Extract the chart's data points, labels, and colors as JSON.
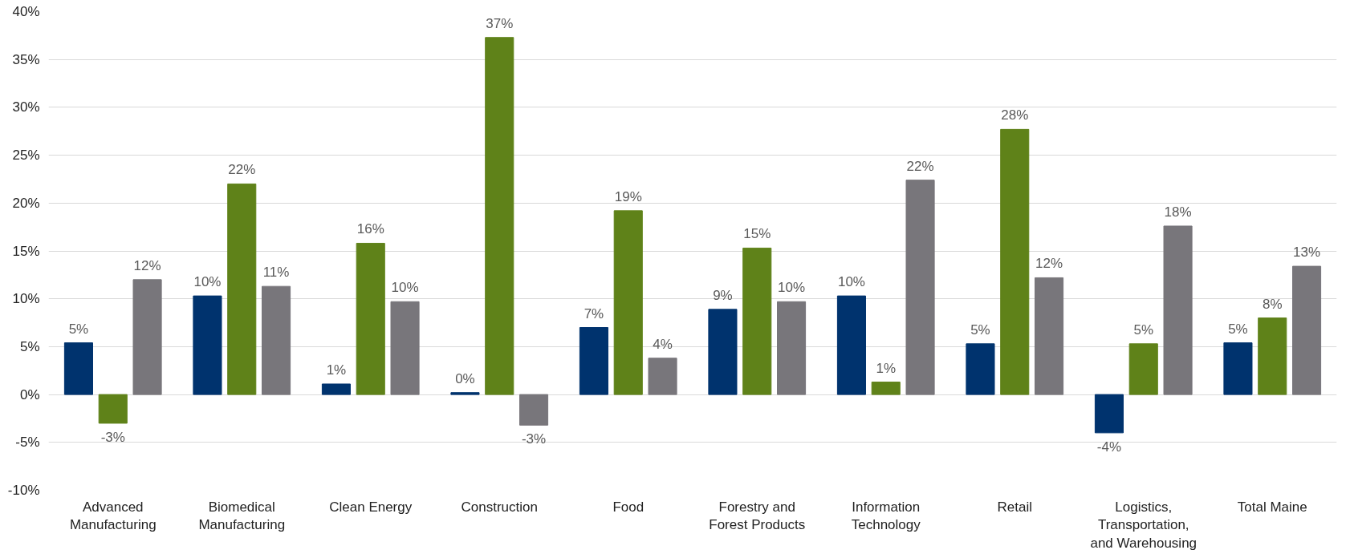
{
  "chart_data": {
    "type": "bar",
    "categories": [
      "Advanced Manufacturing",
      "Biomedical Manufacturing",
      "Clean Energy",
      "Construction",
      "Food",
      "Forestry and Forest Products",
      "Information Technology",
      "Retail",
      "Logistics, Transportation, and Warehousing",
      "Total Maine"
    ],
    "series": [
      {
        "color": "#00336e",
        "values": [
          5.4,
          10.3,
          1.1,
          0.2,
          7.0,
          8.9,
          10.3,
          5.3,
          -4.0,
          5.4
        ],
        "value_labels": [
          "5%",
          "10%",
          "1%",
          "0%",
          "7%",
          "9%",
          "10%",
          "5%",
          "-4%",
          "5%"
        ]
      },
      {
        "color": "#5f8219",
        "values": [
          -3.0,
          22.0,
          15.8,
          37.3,
          19.2,
          15.3,
          1.3,
          27.7,
          5.3,
          8.0
        ],
        "value_labels": [
          "-3%",
          "22%",
          "16%",
          "37%",
          "19%",
          "15%",
          "1%",
          "28%",
          "5%",
          "8%"
        ]
      },
      {
        "color": "#78767b",
        "values": [
          12.0,
          11.3,
          9.7,
          -3.2,
          3.8,
          9.7,
          22.4,
          12.2,
          17.6,
          13.4
        ],
        "value_labels": [
          "12%",
          "11%",
          "10%",
          "-3%",
          "4%",
          "10%",
          "22%",
          "12%",
          "18%",
          "13%"
        ]
      }
    ],
    "ylim": [
      -10,
      40
    ],
    "yticks": [
      {
        "value": -10,
        "label": "-10%"
      },
      {
        "value": -5,
        "label": "-5%"
      },
      {
        "value": 0,
        "label": "0%"
      },
      {
        "value": 5,
        "label": "5%"
      },
      {
        "value": 10,
        "label": "10%"
      },
      {
        "value": 15,
        "label": "15%"
      },
      {
        "value": 20,
        "label": "20%"
      },
      {
        "value": 25,
        "label": "25%"
      },
      {
        "value": 30,
        "label": "30%"
      },
      {
        "value": 35,
        "label": "35%"
      },
      {
        "value": 40,
        "label": "40%"
      }
    ],
    "grid": "y"
  }
}
